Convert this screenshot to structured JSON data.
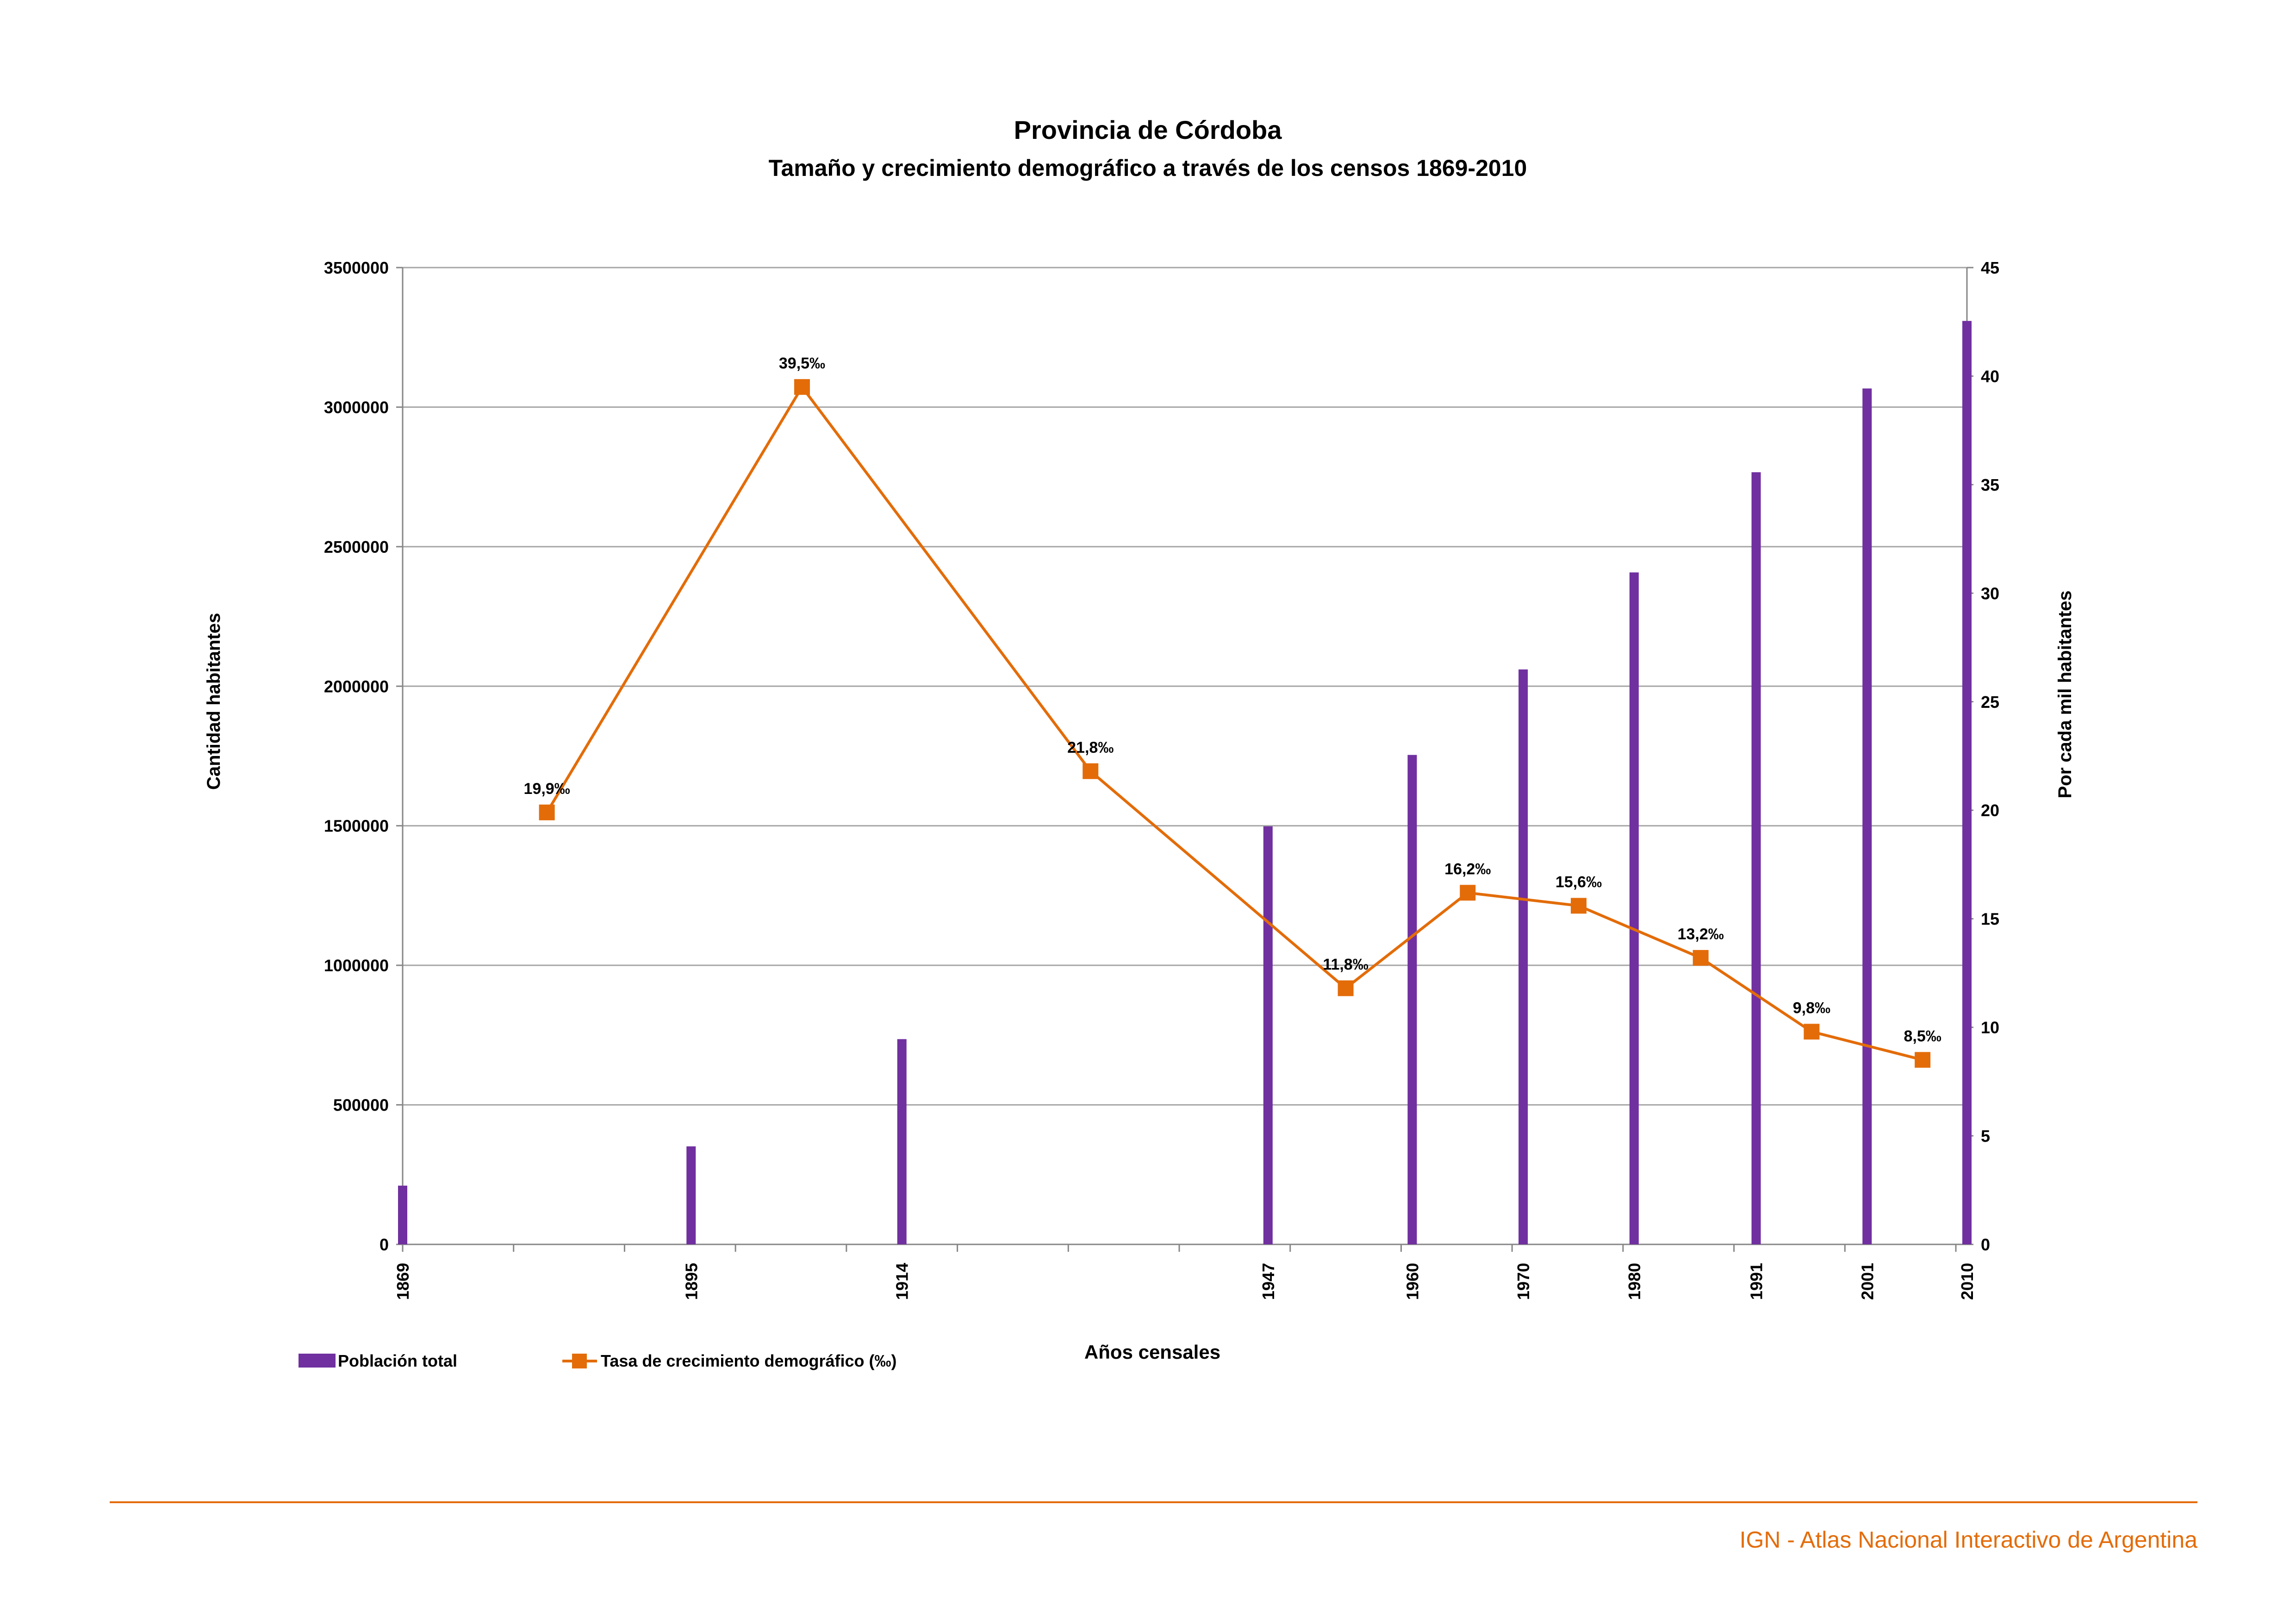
{
  "chart_data": {
    "type": "bar",
    "title": "Provincia de Córdoba",
    "subtitle": "Tamaño y crecimiento demográfico a través de los censos 1869-2010",
    "xlabel": "Años censales",
    "ylabel": "Cantidad habitantes",
    "y2label": "Por cada mil habitantes",
    "ylim": [
      0,
      3500000
    ],
    "y2lim": [
      0,
      45
    ],
    "yticks": [
      "0",
      "500000",
      "1000000",
      "1500000",
      "2000000",
      "2500000",
      "3000000",
      "3500000"
    ],
    "y2ticks": [
      "0",
      "5",
      "10",
      "15",
      "20",
      "25",
      "30",
      "35",
      "40",
      "45"
    ],
    "xlim": [
      1869,
      2010
    ],
    "categories": [
      "1869",
      "1895",
      "1914",
      "1947",
      "1960",
      "1970",
      "1980",
      "1991",
      "2001",
      "2010"
    ],
    "grid": true,
    "legend_position": "bottom-left",
    "series": [
      {
        "name": "Población total",
        "kind": "bar",
        "axis": "left",
        "color": "#7030a0",
        "x": [
          1869,
          1895,
          1914,
          1947,
          1960,
          1970,
          1980,
          1991,
          2001,
          2010
        ],
        "values": [
          210508,
          351223,
          735472,
          1497987,
          1753840,
          2060065,
          2407754,
          2766683,
          3066801,
          3308876
        ]
      },
      {
        "name": "Tasa de crecimiento demográfico (‰)",
        "kind": "line",
        "axis": "right",
        "color": "#e36c09",
        "x": [
          1882,
          1905,
          1931,
          1954,
          1965,
          1975,
          1986,
          1996,
          2006
        ],
        "values": [
          19.9,
          39.5,
          21.8,
          11.8,
          16.2,
          15.6,
          13.2,
          9.8,
          8.5
        ],
        "labels": [
          "19,9‰",
          "39,5‰",
          "21,8‰",
          "11,8‰",
          "16,2‰",
          "15,6‰",
          "13,2‰",
          "9,8‰",
          "8,5‰"
        ]
      }
    ]
  },
  "footer": {
    "credit": "IGN - Atlas Nacional Interactivo de Argentina",
    "color": "#e36c09"
  }
}
